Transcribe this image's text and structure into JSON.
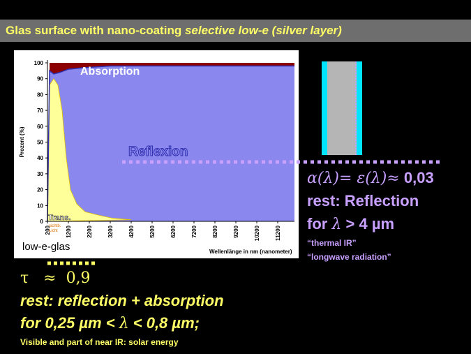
{
  "slide": {
    "title_prefix": "Glas surface with nano-coating ",
    "title_emphasis": "selective low-e (silver layer)",
    "text_color": "#ffff66",
    "right_color": "#c8a0ff"
  },
  "chart_data": {
    "type": "area",
    "ylabel": "Prozent (%)",
    "xlabel": "Wellenlänge in nm (nanometer)",
    "ylim": [
      0,
      100
    ],
    "y_ticks": [
      "0",
      "10",
      "20",
      "30",
      "40",
      "50",
      "60",
      "70",
      "80",
      "90",
      "100"
    ],
    "x_ticks": [
      "200",
      "1200",
      "2200",
      "3200",
      "4200",
      "5200",
      "6200",
      "7200",
      "8200",
      "9200",
      "10200",
      "11200"
    ],
    "regions": [
      {
        "name": "Absorption",
        "color": "#8b0000"
      },
      {
        "name": "Reflexion",
        "color": "#8a87ee"
      },
      {
        "name": "Trans.",
        "color": "#ffff99"
      }
    ],
    "sub_labels": [
      "sichtb.",
      "Licht"
    ],
    "transmission_curve": [
      [
        200,
        0
      ],
      [
        300,
        86
      ],
      [
        500,
        90
      ],
      [
        700,
        86
      ],
      [
        900,
        70
      ],
      [
        1100,
        40
      ],
      [
        1300,
        20
      ],
      [
        1600,
        11
      ],
      [
        2000,
        6
      ],
      [
        2600,
        4
      ],
      [
        3300,
        2
      ],
      [
        4200,
        1
      ]
    ],
    "top_curve": [
      [
        200,
        0
      ],
      [
        300,
        95
      ],
      [
        500,
        93
      ],
      [
        800,
        94
      ],
      [
        1200,
        96
      ],
      [
        2000,
        97
      ],
      [
        3200,
        98
      ],
      [
        12000,
        98
      ]
    ],
    "annotation": "low-e-glas"
  },
  "right": {
    "equation_math": "α(λ)= ε(λ)≈",
    "equation_value": " 0,03",
    "line1": "rest: Reflection",
    "line2_prefix": "for ",
    "line2_lambda": "λ",
    "line2_suffix": " > 4 µm",
    "note1": "“thermal IR”",
    "note2": "“longwave radiation”"
  },
  "left": {
    "tau_line": "τ   ≈  0,9",
    "line1": "rest: reflection + absorption",
    "line2_prefix": "for 0,25 µm < ",
    "line2_lambda": "λ",
    "line2_suffix": " < 0,8 µm;",
    "note": "Visible and part of near IR: solar energy"
  }
}
